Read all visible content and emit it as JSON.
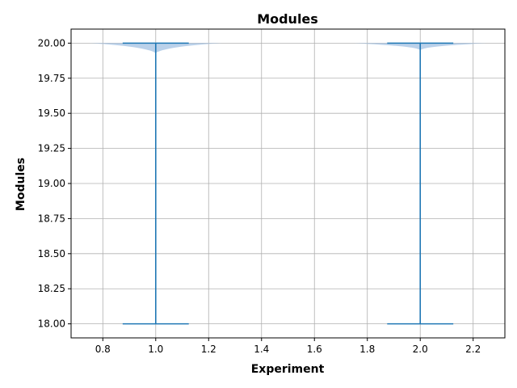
{
  "chart_data": {
    "type": "violin",
    "title": "Modules",
    "xlabel": "Experiment",
    "ylabel": "Modules",
    "xlim": [
      0.68,
      2.32
    ],
    "ylim": [
      17.9,
      20.1
    ],
    "xticks": [
      0.8,
      1.0,
      1.2,
      1.4,
      1.6,
      1.8,
      2.0,
      2.2
    ],
    "xtick_labels": [
      "0.8",
      "1.0",
      "1.2",
      "1.4",
      "1.6",
      "1.8",
      "2.0",
      "2.2"
    ],
    "yticks": [
      18.0,
      18.25,
      18.5,
      18.75,
      19.0,
      19.25,
      19.5,
      19.75,
      20.0
    ],
    "ytick_labels": [
      "18.00",
      "18.25",
      "18.50",
      "18.75",
      "19.00",
      "19.25",
      "19.50",
      "19.75",
      "20.00"
    ],
    "grid": true,
    "colors": {
      "line": "#1f77b4",
      "body": "#aec9e6"
    },
    "violins": [
      {
        "position": 1.0,
        "min": 18.0,
        "max": 20.0,
        "body_halfwidth_at_max": 0.25,
        "body_bottom": 19.93
      },
      {
        "position": 2.0,
        "min": 18.0,
        "max": 20.0,
        "body_halfwidth_at_max": 0.25,
        "body_bottom": 19.95
      }
    ]
  }
}
